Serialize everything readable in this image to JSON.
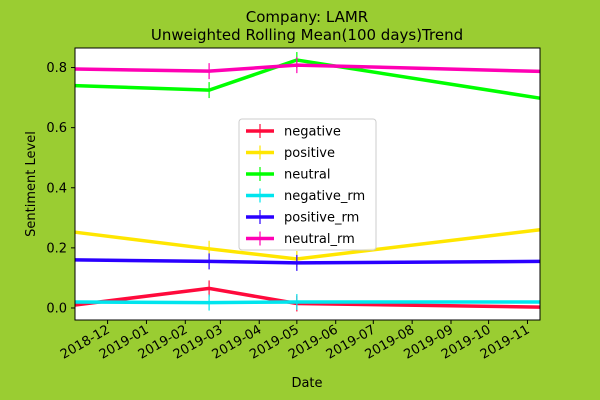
{
  "chart_data": {
    "type": "line",
    "title": "Company: LAMR",
    "subtitle": "Unweighted Rolling Mean(100 days)Trend",
    "xlabel": "Date",
    "ylabel": "Sentiment Level",
    "xlim": [
      "2018-11-05",
      "2019-11-11"
    ],
    "ylim": [
      -0.04,
      0.865
    ],
    "x_ticks": [
      "2018-12",
      "2019-01",
      "2019-02",
      "2019-03",
      "2019-04",
      "2019-05",
      "2019-06",
      "2019-07",
      "2019-08",
      "2019-09",
      "2019-10",
      "2019-11"
    ],
    "y_ticks": [
      "0.0",
      "0.2",
      "0.4",
      "0.6",
      "0.8"
    ],
    "grid": false,
    "legend_position": "center",
    "background_color": "#9acd32",
    "plot_background_color": "#ffffff",
    "x": [
      "2018-11-05",
      "2019-02-20",
      "2019-05-01",
      "2019-11-11"
    ],
    "series": [
      {
        "name": "negative",
        "color": "#ff0a3c",
        "values": [
          0.01,
          0.065,
          0.015,
          0.003
        ]
      },
      {
        "name": "positive",
        "color": "#ffe600",
        "values": [
          0.252,
          0.197,
          0.163,
          0.26
        ]
      },
      {
        "name": "neutral",
        "color": "#00ff00",
        "values": [
          0.74,
          0.725,
          0.825,
          0.698
        ]
      },
      {
        "name": "negative_rm",
        "color": "#00e5ee",
        "values": [
          0.02,
          0.018,
          0.02,
          0.02
        ]
      },
      {
        "name": "positive_rm",
        "color": "#2a00ff",
        "values": [
          0.16,
          0.155,
          0.15,
          0.155
        ]
      },
      {
        "name": "neutral_rm",
        "color": "#ff00b4",
        "values": [
          0.795,
          0.788,
          0.808,
          0.787
        ]
      }
    ]
  }
}
